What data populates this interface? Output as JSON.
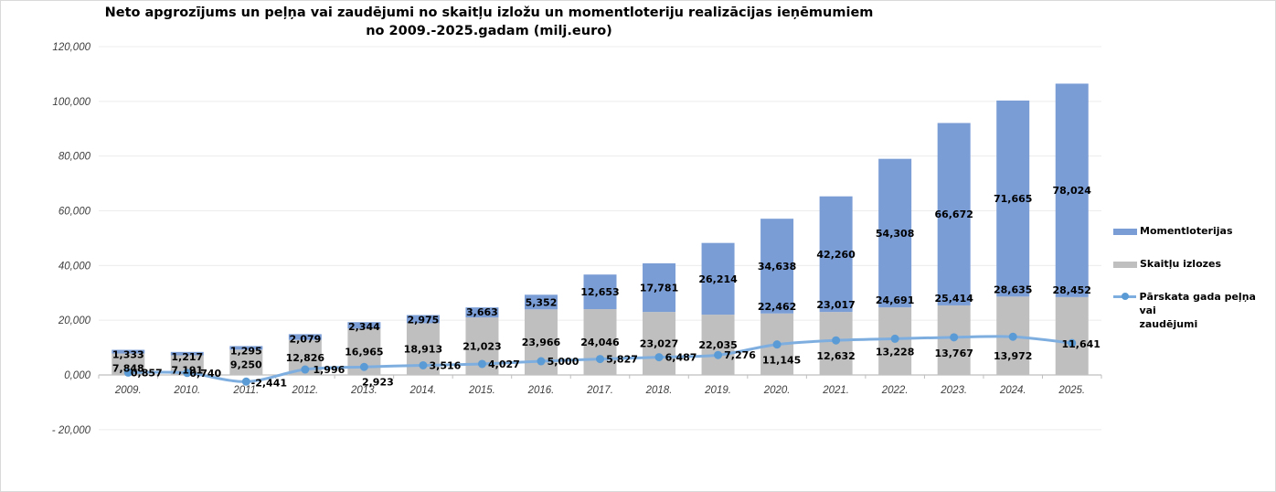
{
  "chart_data": {
    "type": "bar",
    "stacked": true,
    "title": "Neto apgrozījums un peļņa vai zaudējumi no skaitļu izložu un momentloteriju realizācijas ieņēmumiem no 2009.-2025.gadam (milj.euro)",
    "title_lines": [
      "Neto apgrozījums un peļņa vai zaudējumi no skaitļu izložu un momentloteriju realizācijas ieņēmumiem",
      "no 2009.-2025.gadam (milj.euro)"
    ],
    "xlabel": "",
    "ylabel": "",
    "ylim": [
      -20,
      120
    ],
    "yticks": [
      -20,
      0,
      20,
      40,
      60,
      80,
      100,
      120
    ],
    "ytick_labels": [
      "- 20,000",
      "0,000",
      "20,000",
      "40,000",
      "60,000",
      "80,000",
      "100,000",
      "120,000"
    ],
    "grid": true,
    "legend_position": "right",
    "categories": [
      "2009.",
      "2010.",
      "2011.",
      "2012.",
      "2013.",
      "2014.",
      "2015.",
      "2016.",
      "2017.",
      "2018.",
      "2019.",
      "2020.",
      "2021.",
      "2022.",
      "2023.",
      "2024.",
      "2025."
    ],
    "series": [
      {
        "name": "Skaitļu izlozes",
        "type": "bar",
        "color": "#bfbfbf",
        "values": [
          7.848,
          7.191,
          9.25,
          12.826,
          16.965,
          18.913,
          21.023,
          23.966,
          24.046,
          23.027,
          22.035,
          22.462,
          23.017,
          24.691,
          25.414,
          28.635,
          28.452
        ],
        "labels": [
          "7,848",
          "7,191",
          "9,250",
          "12,826",
          "16,965",
          "18,913",
          "21,023",
          "23,966",
          "24,046",
          "23,027",
          "22,035",
          "22,462",
          "23,017",
          "24,691",
          "25,414",
          "28,635",
          "28,452"
        ]
      },
      {
        "name": "Momentloterijas",
        "type": "bar",
        "color": "#7b9dd6",
        "values": [
          1.333,
          1.217,
          1.295,
          2.079,
          2.344,
          2.975,
          3.663,
          5.352,
          12.653,
          17.781,
          26.214,
          34.638,
          42.26,
          54.308,
          66.672,
          71.665,
          78.024
        ],
        "labels": [
          "1,333",
          "1,217",
          "1,295",
          "2,079",
          "2,344",
          "2,975",
          "3,663",
          "5,352",
          "12,653",
          "17,781",
          "26,214",
          "34,638",
          "42,260",
          "54,308",
          "66,672",
          "71,665",
          "78,024"
        ]
      },
      {
        "name": "Pārskata gada peļņa vai zaudējumi",
        "type": "line",
        "color": "#7eaee0",
        "marker_color": "#5b9bd5",
        "values": [
          0.857,
          0.74,
          -2.441,
          1.996,
          2.923,
          3.516,
          4.027,
          5.0,
          5.827,
          6.487,
          7.276,
          11.145,
          12.632,
          13.228,
          13.767,
          13.972,
          11.641
        ],
        "labels": [
          "0,857",
          "0,740",
          "-2,441",
          "1,996",
          "2,923",
          "3,516",
          "4,027",
          "5,000",
          "5,827",
          "6,487",
          "7,276",
          "11,145",
          "12,632",
          "13,228",
          "13,767",
          "13,972",
          "11,641"
        ]
      }
    ],
    "legend": [
      {
        "name": "Momentloterijas",
        "kind": "bar",
        "color": "#7b9dd6"
      },
      {
        "name": "Skaitļu izlozes",
        "kind": "bar",
        "color": "#bfbfbf"
      },
      {
        "name": "Pārskata gada peļņa vai zaudējumi",
        "kind": "line",
        "color": "#7eaee0",
        "label_lines": [
          "Pārskata gada peļņa vai",
          "zaudējumi"
        ]
      }
    ]
  }
}
